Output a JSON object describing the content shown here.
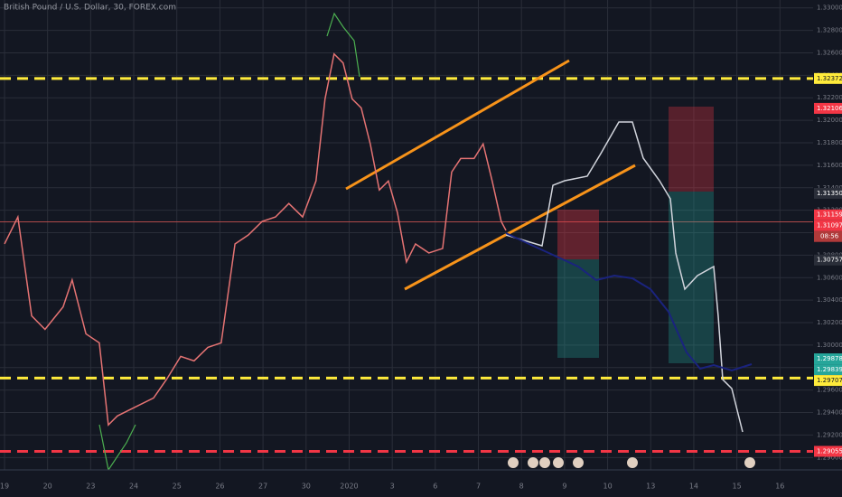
{
  "chart_data": {
    "type": "line",
    "title": "British Pound / U.S. Dollar, 30, FOREX.com",
    "x": [
      0,
      0.31,
      0.63,
      0.94,
      1.36,
      1.57,
      1.89,
      2.2,
      2.41,
      2.62,
      3.04,
      3.46,
      3.77,
      4.09,
      4.4,
      4.72,
      5.03,
      5.35,
      5.66,
      5.98,
      6.29,
      6.6,
      6.92,
      7.23,
      7.44,
      7.65,
      7.86,
      8.07,
      8.28,
      8.49,
      8.7,
      8.91,
      9.12,
      9.33,
      9.54,
      9.85,
      10.17,
      10.38,
      10.59,
      10.9,
      11.11,
      11.32,
      11.53,
      11.64
    ],
    "series": [
      {
        "color": "#e57373",
        "values": [
          1.309,
          1.3114,
          1.3026,
          1.3014,
          1.3034,
          1.3058,
          1.301,
          1.3002,
          1.2929,
          1.2937,
          1.2945,
          1.2953,
          1.297,
          1.299,
          1.2986,
          1.2998,
          1.3002,
          1.309,
          1.3098,
          1.311,
          1.3114,
          1.3126,
          1.3114,
          1.3146,
          1.3219,
          1.3259,
          1.3251,
          1.3219,
          1.3211,
          1.3179,
          1.3138,
          1.3146,
          1.3118,
          1.3074,
          1.309,
          1.3082,
          1.3086,
          1.3154,
          1.3166,
          1.3166,
          1.3179,
          1.3146,
          1.311,
          1.3102
        ]
      }
    ],
    "xlim": [
      0,
      19
    ],
    "xticks": [
      {
        "value": 0,
        "label": "19"
      },
      {
        "value": 1,
        "label": "20"
      },
      {
        "value": 2,
        "label": "23"
      },
      {
        "value": 3,
        "label": "24"
      },
      {
        "value": 4,
        "label": "25"
      },
      {
        "value": 5,
        "label": "26"
      },
      {
        "value": 6,
        "label": "27"
      },
      {
        "value": 7,
        "label": "30"
      },
      {
        "value": 8,
        "label": "2020"
      },
      {
        "value": 9,
        "label": "3"
      },
      {
        "value": 10,
        "label": "6"
      },
      {
        "value": 11,
        "label": "7"
      },
      {
        "value": 12,
        "label": "8"
      },
      {
        "value": 13,
        "label": "9"
      },
      {
        "value": 14,
        "label": "10"
      },
      {
        "value": 15,
        "label": "13"
      },
      {
        "value": 16,
        "label": "14"
      },
      {
        "value": 17,
        "label": "15"
      },
      {
        "value": 18,
        "label": "16"
      }
    ],
    "ylim": [
      1.2889,
      1.3307
    ],
    "yticks": [
      {
        "value": 1.29,
        "label": "1.29000"
      },
      {
        "value": 1.292,
        "label": "1.29200"
      },
      {
        "value": 1.294,
        "label": "1.29400"
      },
      {
        "value": 1.296,
        "label": "1.29600"
      },
      {
        "value": 1.298,
        "label": "1.29800"
      },
      {
        "value": 1.3,
        "label": "1.30000"
      },
      {
        "value": 1.302,
        "label": "1.30200"
      },
      {
        "value": 1.304,
        "label": "1.30400"
      },
      {
        "value": 1.306,
        "label": "1.30600"
      },
      {
        "value": 1.308,
        "label": "1.30800"
      },
      {
        "value": 1.31,
        "label": "1.31000"
      },
      {
        "value": 1.312,
        "label": "1.31200"
      },
      {
        "value": 1.314,
        "label": "1.31400"
      },
      {
        "value": 1.316,
        "label": "1.31600"
      },
      {
        "value": 1.318,
        "label": "1.31800"
      },
      {
        "value": 1.32,
        "label": "1.32000"
      },
      {
        "value": 1.322,
        "label": "1.32200"
      },
      {
        "value": 1.324,
        "label": "1.32400"
      },
      {
        "value": 1.326,
        "label": "1.32600"
      },
      {
        "value": 1.328,
        "label": "1.32800"
      },
      {
        "value": 1.33,
        "label": "1.33000"
      }
    ],
    "grid": true,
    "levels": [
      {
        "value": 1.32372,
        "color": "#ffeb3b",
        "style": "dashed"
      },
      {
        "value": 1.29707,
        "color": "#ffeb3b",
        "style": "dashed"
      },
      {
        "value": 1.29055,
        "color": "#f23645",
        "style": "dashed"
      },
      {
        "value": 1.31097,
        "color": "#b04a4a",
        "style": "solid"
      }
    ],
    "price_labels": [
      {
        "value": 1.32372,
        "color": "#ffeb3b"
      },
      {
        "value": 1.32106,
        "color": "#f23645"
      },
      {
        "value": {
          "value": 1.3135,
          "label": "1.31350"
        },
        "color": "#2a2e39"
      },
      {
        "value": 1.31159,
        "color": "#f23645"
      },
      {
        "value": 1.31097,
        "color": "#f23645"
      },
      {
        "value": 1.30757,
        "color": "#2a2e39"
      },
      {
        "value": 1.29878,
        "color": "#26a69a"
      },
      {
        "value": 1.29839,
        "color": "#26a69a"
      },
      {
        "value": 1.29707,
        "color": "#ffeb3b"
      },
      {
        "value": 1.29055,
        "color": "#f23645"
      }
    ],
    "countdown": "08:56"
  }
}
